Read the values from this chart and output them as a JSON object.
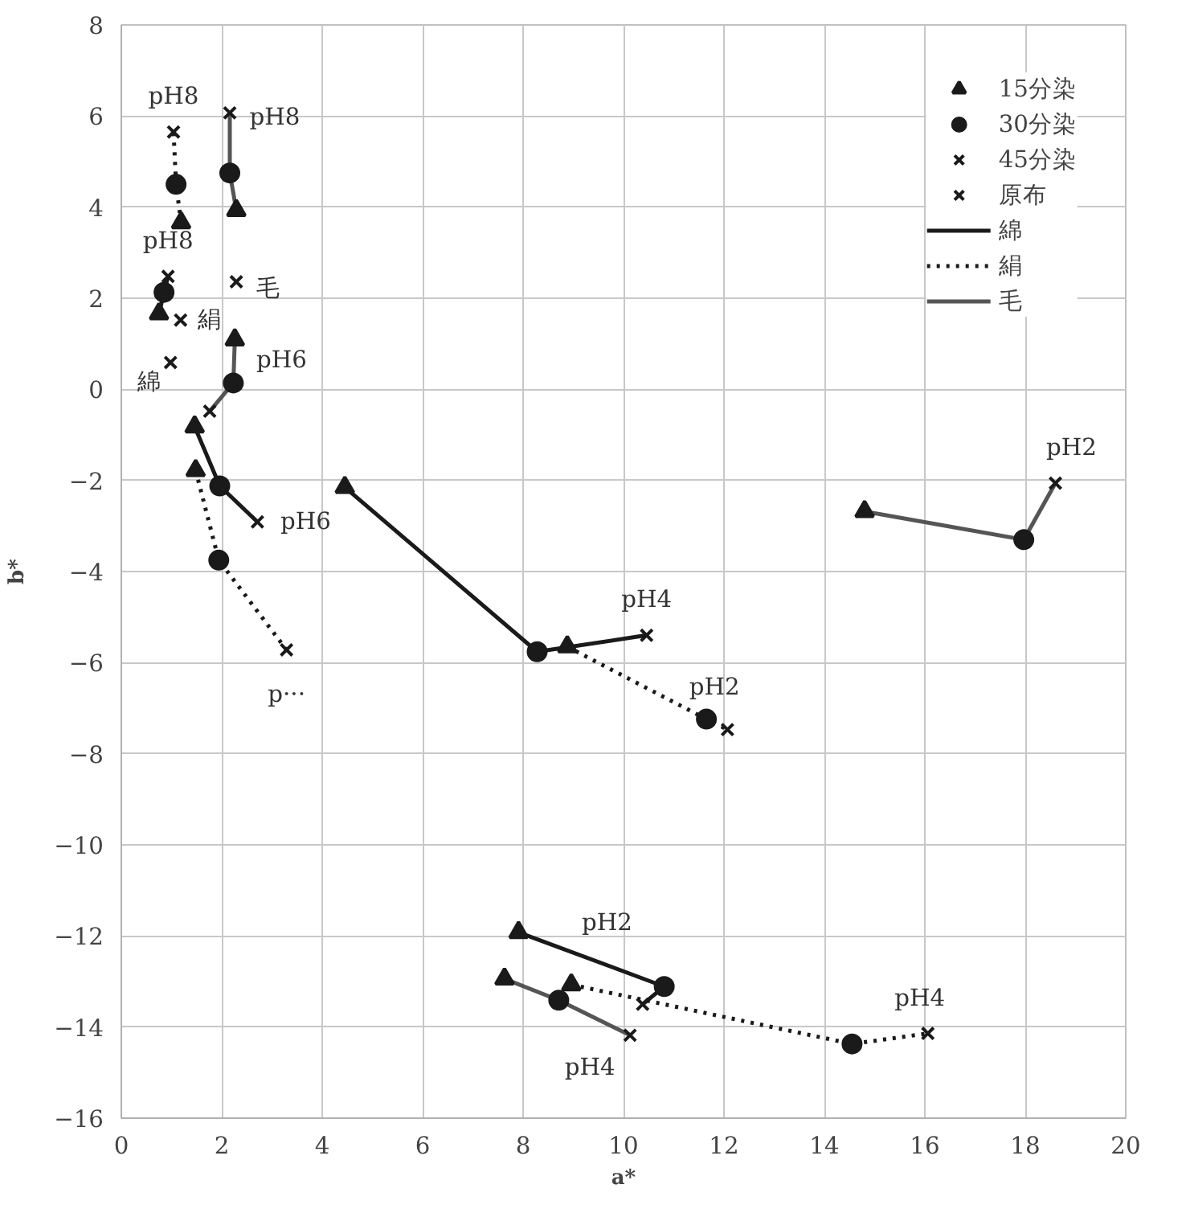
{
  "chart_data": {
    "type": "scatter",
    "xlabel": "a*",
    "ylabel": "b*",
    "xlim": [
      0,
      20
    ],
    "ylim": [
      -16,
      8
    ],
    "xticks": [
      0,
      2,
      4,
      6,
      8,
      10,
      12,
      14,
      16,
      18,
      20
    ],
    "yticks": [
      -16,
      -14,
      -12,
      -10,
      -8,
      -6,
      -4,
      -2,
      0,
      2,
      4,
      6,
      8
    ],
    "grid": true,
    "legend": "top right",
    "series": [
      {
        "name": "15分染",
        "marker": "triangle",
        "color": "#1a1a1a",
        "x": [
          0.75,
          1.46,
          4.45,
          7.91,
          1.19,
          1.48,
          8.88,
          8.96,
          2.29,
          2.26,
          14.8,
          7.63
        ],
        "values": [
          1.66,
          -0.82,
          -2.15,
          -11.92,
          3.66,
          -1.78,
          -5.65,
          -13.07,
          3.93,
          1.09,
          -2.68,
          -12.94
        ]
      },
      {
        "name": "30分染",
        "marker": "circle",
        "color": "#1a1a1a",
        "x": [
          0.85,
          1.96,
          8.28,
          10.81,
          1.09,
          1.94,
          11.65,
          14.55,
          2.16,
          2.23,
          17.97,
          8.71
        ],
        "values": [
          2.13,
          -2.12,
          -5.76,
          -13.11,
          4.5,
          -3.75,
          -7.24,
          -14.37,
          4.75,
          0.14,
          -3.3,
          -13.41
        ]
      },
      {
        "name": "45分染",
        "marker": "cross",
        "color": "#1a1a1a",
        "x": [
          0.93,
          2.71,
          10.46,
          10.38,
          1.04,
          3.29,
          12.07,
          16.06,
          2.16,
          1.76,
          18.6,
          10.13
        ],
        "values": [
          2.48,
          -2.91,
          -5.4,
          -13.5,
          5.65,
          -5.72,
          -7.47,
          -14.14,
          6.07,
          -0.48,
          -2.06,
          -14.18
        ]
      },
      {
        "name": "原布",
        "marker": "cross",
        "color": "#1a1a1a",
        "x": [
          0.98,
          1.18,
          2.29
        ],
        "values": [
          0.59,
          1.52,
          2.36
        ]
      },
      {
        "name": "綿",
        "type": "line",
        "line_style": "solid",
        "color": "#1a1a1a",
        "x": [
          0.75,
          0.85,
          0.93,
          null,
          1.46,
          1.96,
          2.71,
          null,
          4.45,
          8.28,
          10.46,
          null,
          7.91,
          10.81,
          10.38
        ],
        "values": [
          1.66,
          2.13,
          2.48,
          null,
          -0.82,
          -2.12,
          -2.91,
          null,
          -2.15,
          -5.76,
          -5.4,
          null,
          -11.92,
          -13.11,
          -13.5
        ]
      },
      {
        "name": "絹",
        "type": "line",
        "line_style": "dotted",
        "color": "#1a1a1a",
        "x": [
          1.19,
          1.09,
          1.04,
          null,
          1.48,
          1.94,
          3.29,
          null,
          8.88,
          11.65,
          12.07,
          null,
          8.96,
          14.55,
          16.06
        ],
        "values": [
          3.66,
          4.5,
          5.65,
          null,
          -1.78,
          -3.75,
          -5.72,
          null,
          -5.65,
          -7.24,
          -7.47,
          null,
          -13.07,
          -14.37,
          -14.14
        ]
      },
      {
        "name": "毛",
        "type": "line",
        "line_style": "solid",
        "color": "#555555",
        "x": [
          2.29,
          2.16,
          2.16,
          null,
          2.26,
          2.23,
          1.76,
          null,
          14.8,
          17.97,
          18.6,
          null,
          7.63,
          8.71,
          10.13
        ],
        "values": [
          3.93,
          4.75,
          6.07,
          null,
          1.09,
          0.14,
          -0.48,
          null,
          -2.68,
          -3.3,
          -2.06,
          null,
          -12.94,
          -13.41,
          -14.18
        ]
      }
    ],
    "annotations": [
      {
        "text": "pH8",
        "x": 1.04,
        "y": 5.65
      },
      {
        "text": "pH8",
        "x": 2.16,
        "y": 6.07
      },
      {
        "text": "pH8",
        "x": 0.93,
        "y": 2.48
      },
      {
        "text": "毛",
        "x": 2.29,
        "y": 2.36
      },
      {
        "text": "絹",
        "x": 1.18,
        "y": 1.52
      },
      {
        "text": "綿",
        "x": 0.98,
        "y": 0.59
      },
      {
        "text": "pH6",
        "x": 2.23,
        "y": 0.14
      },
      {
        "text": "pH6",
        "x": 2.71,
        "y": -2.91
      },
      {
        "text": "p···",
        "x": 3.29,
        "y": -5.72
      },
      {
        "text": "pH4",
        "x": 10.46,
        "y": -5.4
      },
      {
        "text": "pH2",
        "x": 11.65,
        "y": -7.24
      },
      {
        "text": "pH2",
        "x": 18.6,
        "y": -2.06
      },
      {
        "text": "pH2",
        "x": 7.91,
        "y": -11.92
      },
      {
        "text": "pH4",
        "x": 10.13,
        "y": -14.18
      },
      {
        "text": "pH4",
        "x": 16.06,
        "y": -14.14
      }
    ]
  }
}
